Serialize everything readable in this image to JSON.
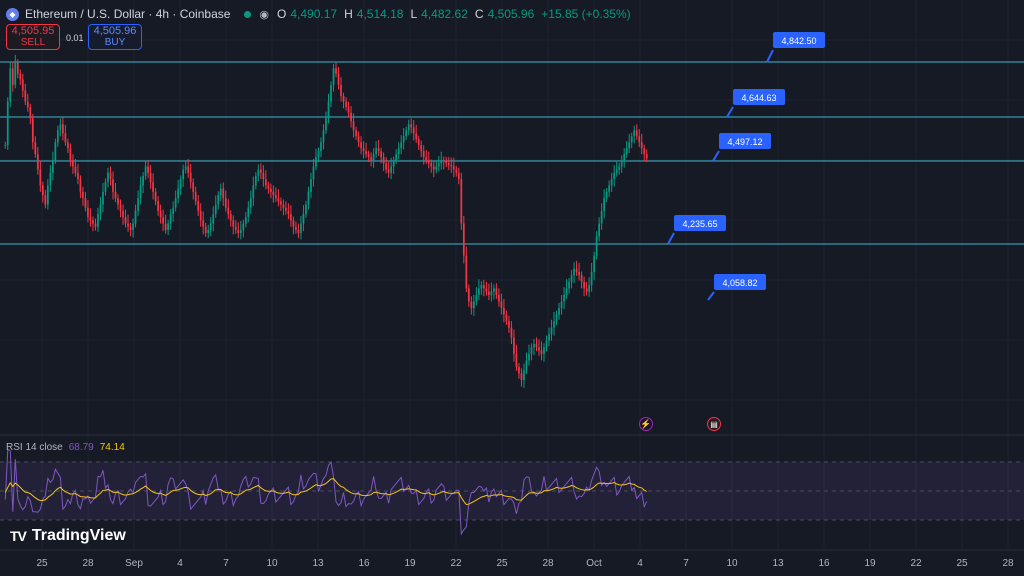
{
  "header": {
    "symbol": "Ethereum / U.S. Dollar · 4h · Coinbase",
    "logo_icon": "ethereum-icon",
    "status_icon": "market-open-dot",
    "eye_icon": "eye-icon",
    "ohlc": {
      "o_label": "O",
      "o": "4,490.17",
      "h_label": "H",
      "h": "4,514.18",
      "l_label": "L",
      "l": "4,482.62",
      "c_label": "C",
      "c": "4,505.96",
      "change": "+15.85 (+0.35%)"
    }
  },
  "trade": {
    "sell_price": "4,505.95",
    "sell_label": "SELL",
    "spread": "0.01",
    "buy_price": "4,505.96",
    "buy_label": "BUY"
  },
  "colors": {
    "background": "#161a25",
    "up": "#089981",
    "down": "#f23645",
    "hline": "#38b6d0",
    "label_bg": "#2962ff",
    "rsi_line": "#7e57c2",
    "rsi_ma": "#f5c518",
    "grid": "#1f2331"
  },
  "chart_data": {
    "type": "candlestick",
    "price_range": [
      3750,
      4980
    ],
    "horizontal_levels": [
      4842.5,
      4644.63,
      4497.12,
      4235.65
    ],
    "price_labels": [
      "4,842.50",
      "4,644.63",
      "4,497.12",
      "4,235.65",
      "4,058.82"
    ],
    "x_ticks": [
      "25",
      "28",
      "Sep",
      "4",
      "7",
      "10",
      "13",
      "16",
      "19",
      "22",
      "25",
      "28",
      "Oct",
      "4",
      "7",
      "10",
      "13",
      "16",
      "19",
      "22",
      "25",
      "28"
    ],
    "close_series": [
      4550,
      4700,
      4820,
      4760,
      4840,
      4800,
      4780,
      4740,
      4700,
      4680,
      4640,
      4560,
      4520,
      4470,
      4420,
      4390,
      4360,
      4420,
      4460,
      4500,
      4560,
      4600,
      4620,
      4590,
      4560,
      4540,
      4500,
      4480,
      4460,
      4440,
      4400,
      4380,
      4350,
      4320,
      4310,
      4300,
      4290,
      4330,
      4360,
      4400,
      4430,
      4460,
      4440,
      4400,
      4380,
      4360,
      4340,
      4320,
      4300,
      4290,
      4280,
      4300,
      4340,
      4380,
      4420,
      4450,
      4480,
      4460,
      4430,
      4400,
      4370,
      4340,
      4320,
      4300,
      4280,
      4300,
      4330,
      4350,
      4380,
      4410,
      4440,
      4470,
      4480,
      4460,
      4430,
      4400,
      4370,
      4340,
      4310,
      4290,
      4270,
      4280,
      4300,
      4330,
      4360,
      4390,
      4410,
      4380,
      4350,
      4330,
      4310,
      4290,
      4280,
      4270,
      4280,
      4300,
      4320,
      4350,
      4380,
      4420,
      4450,
      4470,
      4460,
      4440,
      4420,
      4410,
      4400,
      4390,
      4380,
      4370,
      4360,
      4350,
      4340,
      4330,
      4310,
      4290,
      4280,
      4270,
      4300,
      4330,
      4360,
      4400,
      4440,
      4480,
      4510,
      4530,
      4560,
      4600,
      4640,
      4700,
      4760,
      4820,
      4800,
      4760,
      4720,
      4700,
      4680,
      4660,
      4630,
      4600,
      4580,
      4560,
      4540,
      4530,
      4520,
      4510,
      4500,
      4520,
      4540,
      4530,
      4510,
      4490,
      4470,
      4460,
      4480,
      4500,
      4520,
      4540,
      4560,
      4580,
      4600,
      4620,
      4610,
      4590,
      4570,
      4550,
      4530,
      4510,
      4500,
      4490,
      4480,
      4470,
      4480,
      4490,
      4500,
      4495,
      4490,
      4485,
      4480,
      4470,
      4460,
      4440,
      4300,
      4200,
      4100,
      4060,
      4040,
      4060,
      4080,
      4100,
      4110,
      4100,
      4090,
      4080,
      4090,
      4100,
      4080,
      4060,
      4040,
      4020,
      4000,
      3980,
      3950,
      3900,
      3860,
      3840,
      3820,
      3850,
      3880,
      3900,
      3920,
      3930,
      3920,
      3910,
      3900,
      3920,
      3940,
      3960,
      3980,
      4000,
      4020,
      4040,
      4060,
      4080,
      4100,
      4120,
      4140,
      4160,
      4150,
      4140,
      4120,
      4100,
      4090,
      4110,
      4150,
      4200,
      4260,
      4300,
      4340,
      4380,
      4400,
      4420,
      4440,
      4460,
      4470,
      4480,
      4500,
      4520,
      4540,
      4560,
      4580,
      4600,
      4580,
      4560,
      4540,
      4520,
      4506
    ],
    "rsi": {
      "label": "RSI 14 close",
      "value": "68.79",
      "ma_value": "74.14",
      "levels": [
        70,
        50,
        30
      ]
    }
  },
  "branding": {
    "text": "TradingView",
    "mark": "TV"
  },
  "events": {
    "event1_icon": "lightning-event-icon",
    "event2_icon": "us-flag-event-icon"
  }
}
